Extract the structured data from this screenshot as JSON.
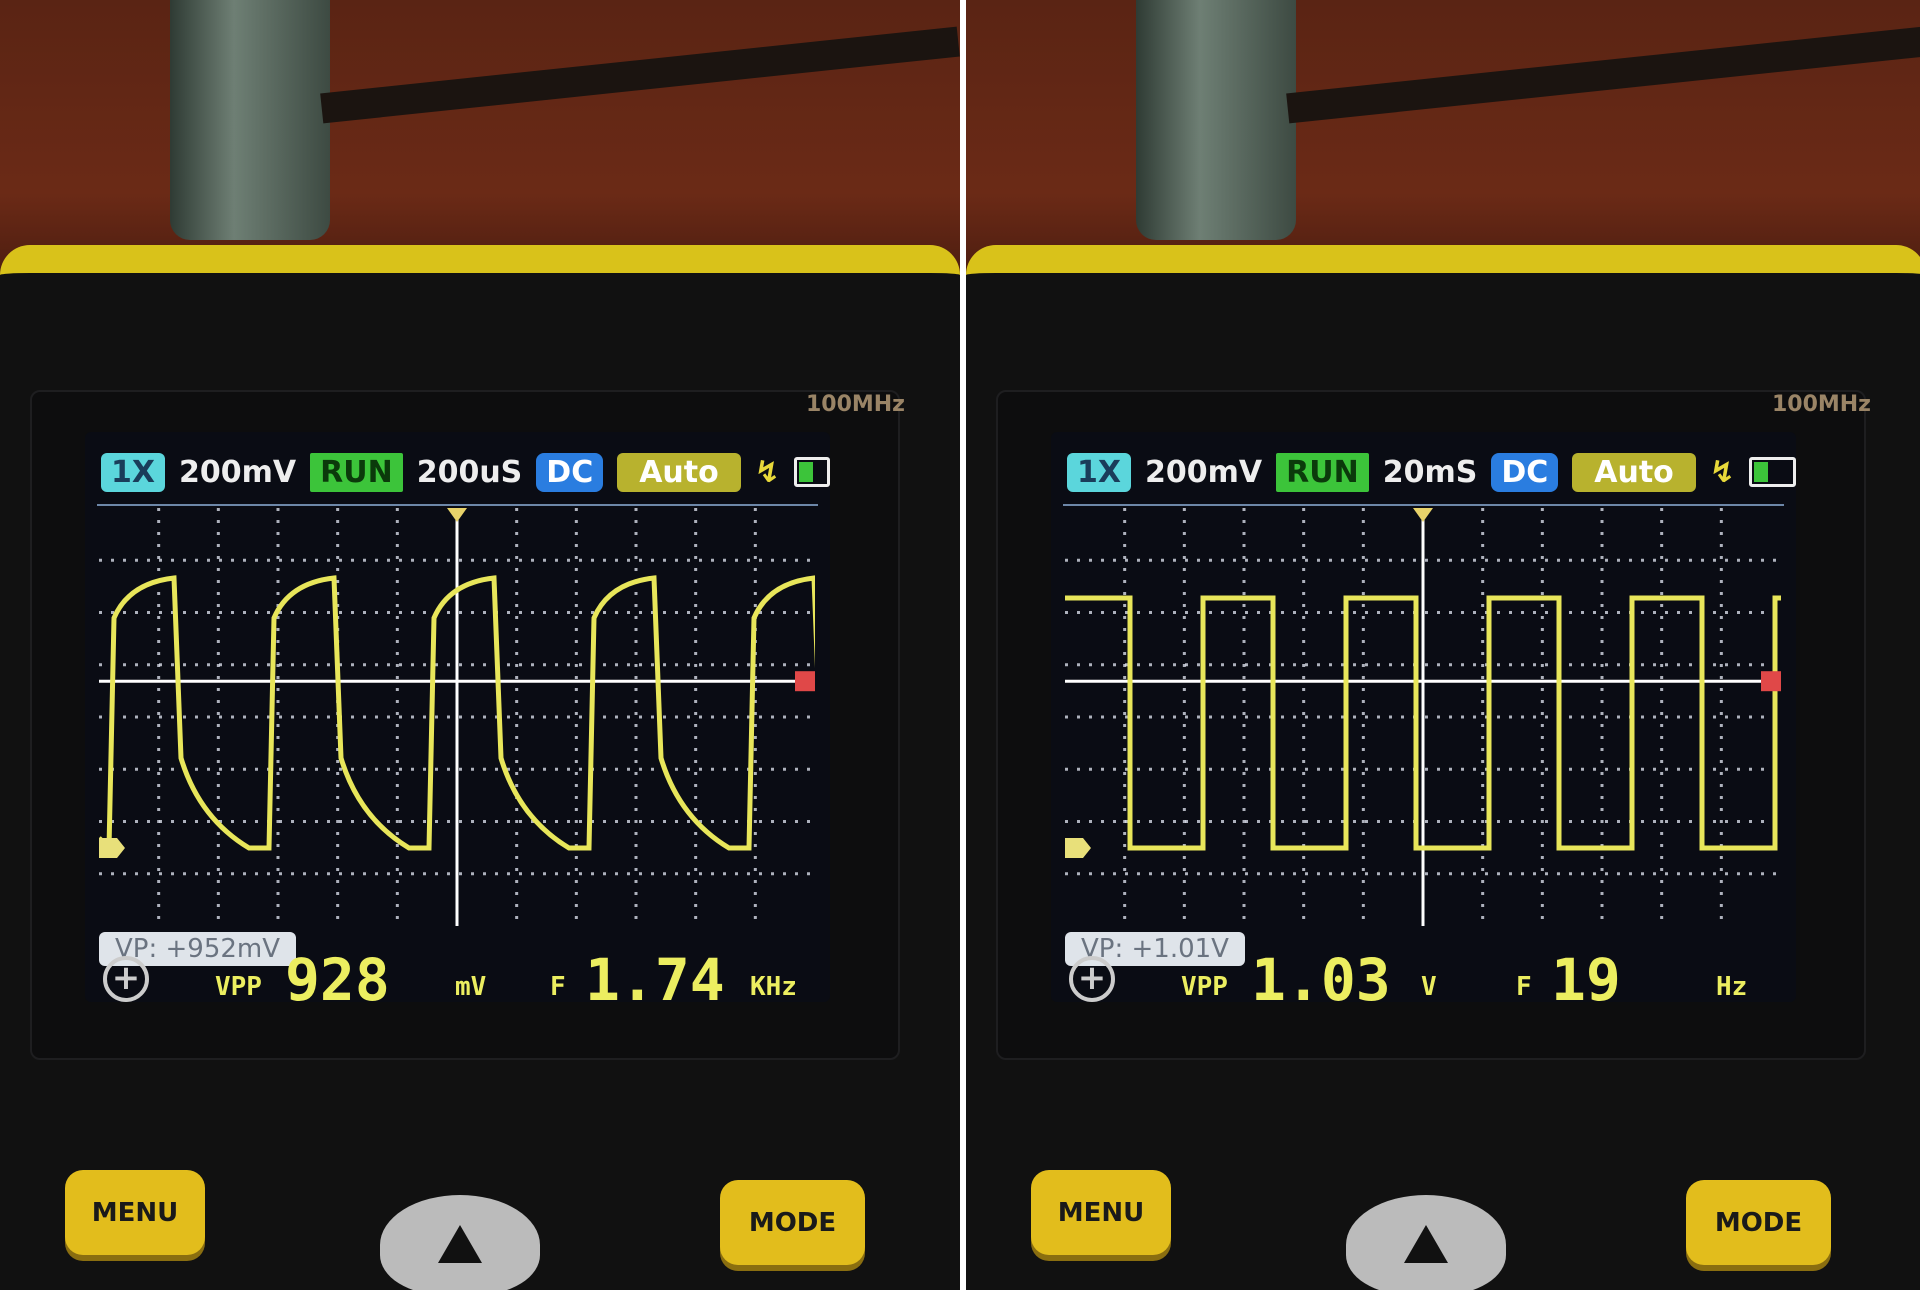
{
  "screens": [
    {
      "bandwidth": "100MHz",
      "probe": "1X",
      "volts_div": "200mV",
      "state": "RUN",
      "time_div": "200uS",
      "coupling": "DC",
      "trigger_mode": "Auto",
      "trigger_edge_icon": "rising-edge-icon",
      "battery_icon": "battery-low-icon",
      "vp": "VP: +952mV",
      "vpp_label": "VPP",
      "vpp_value": "928",
      "vpp_unit": "mV",
      "freq_label": "F",
      "freq_value": "1.74",
      "freq_unit": "KHz",
      "menu_label": "MENU",
      "mode_label": "MODE",
      "waveform": "rc-square"
    },
    {
      "bandwidth": "100MHz",
      "probe": "1X",
      "volts_div": "200mV",
      "state": "RUN",
      "time_div": "20mS",
      "coupling": "DC",
      "trigger_mode": "Auto",
      "trigger_edge_icon": "rising-edge-icon",
      "battery_icon": "battery-low-icon",
      "vp": "VP: +1.01V",
      "vpp_label": "VPP",
      "vpp_value": "1.03",
      "vpp_unit": "V",
      "freq_label": "F",
      "freq_value": "19",
      "freq_unit": "Hz",
      "menu_label": "MENU",
      "mode_label": "MODE",
      "waveform": "square"
    }
  ],
  "colors": {
    "trace": "#e8e65a",
    "grid": "#d8dce8",
    "body_trim": "#d9c21a"
  }
}
